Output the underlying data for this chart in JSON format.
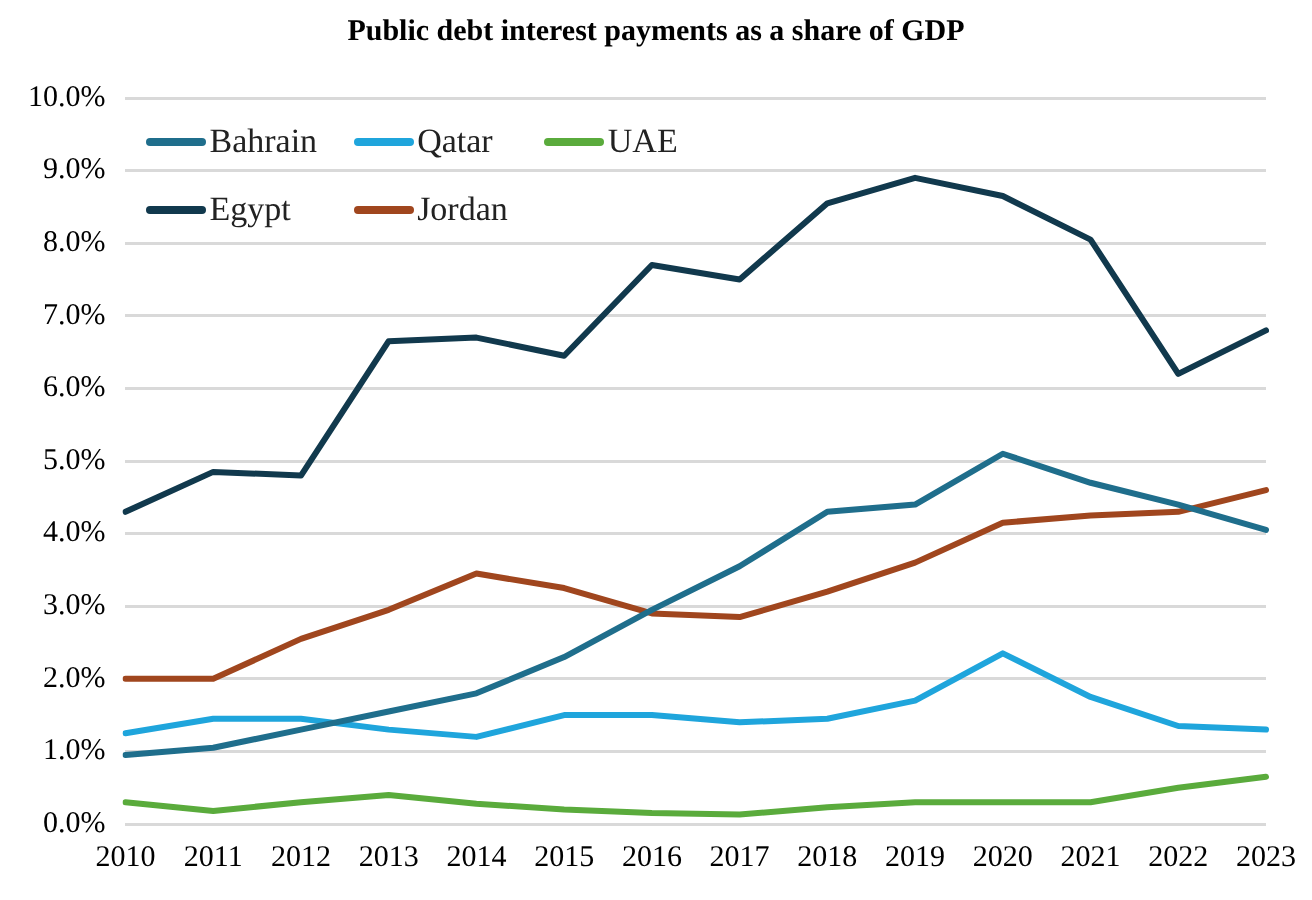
{
  "chart_data": {
    "type": "line",
    "title": "Public debt interest payments as a share of GDP",
    "categories": [
      "2010",
      "2011",
      "2012",
      "2013",
      "2014",
      "2015",
      "2016",
      "2017",
      "2018",
      "2019",
      "2020",
      "2021",
      "2022",
      "2023"
    ],
    "series": [
      {
        "name": "Bahrain",
        "color": "#1f6e8c",
        "values": [
          0.95,
          1.05,
          1.3,
          1.55,
          1.8,
          2.3,
          2.95,
          3.55,
          4.3,
          4.4,
          5.1,
          4.7,
          4.4,
          4.05
        ]
      },
      {
        "name": "Qatar",
        "color": "#1fa5dc",
        "values": [
          1.25,
          1.45,
          1.45,
          1.3,
          1.2,
          1.5,
          1.5,
          1.4,
          1.45,
          1.7,
          2.35,
          1.75,
          1.35,
          1.3
        ]
      },
      {
        "name": "UAE",
        "color": "#5aab3c",
        "values": [
          0.3,
          0.18,
          0.3,
          0.4,
          0.28,
          0.2,
          0.15,
          0.13,
          0.23,
          0.3,
          0.3,
          0.3,
          0.5,
          0.65
        ]
      },
      {
        "name": "Egypt",
        "color": "#11394d",
        "values": [
          4.3,
          4.85,
          4.8,
          6.65,
          6.7,
          6.45,
          7.7,
          7.5,
          8.55,
          8.9,
          8.65,
          8.05,
          6.2,
          6.8
        ]
      },
      {
        "name": "Jordan",
        "color": "#a0461e",
        "values": [
          2.0,
          2.0,
          2.55,
          2.95,
          3.45,
          3.25,
          2.9,
          2.85,
          3.2,
          3.6,
          4.15,
          4.25,
          4.3,
          4.6
        ]
      }
    ],
    "ylim": [
      0,
      10
    ],
    "yticks": [
      {
        "value": 0,
        "label": "0.0%"
      },
      {
        "value": 1,
        "label": "1.0%"
      },
      {
        "value": 2,
        "label": "2.0%"
      },
      {
        "value": 3,
        "label": "3.0%"
      },
      {
        "value": 4,
        "label": "4.0%"
      },
      {
        "value": 5,
        "label": "5.0%"
      },
      {
        "value": 6,
        "label": "6.0%"
      },
      {
        "value": 7,
        "label": "7.0%"
      },
      {
        "value": 8,
        "label": "8.0%"
      },
      {
        "value": 9,
        "label": "9.0%"
      },
      {
        "value": 10,
        "label": "10.0%"
      }
    ],
    "grid": "y",
    "legend": "top left",
    "marker": "none",
    "line_style": "solid"
  }
}
